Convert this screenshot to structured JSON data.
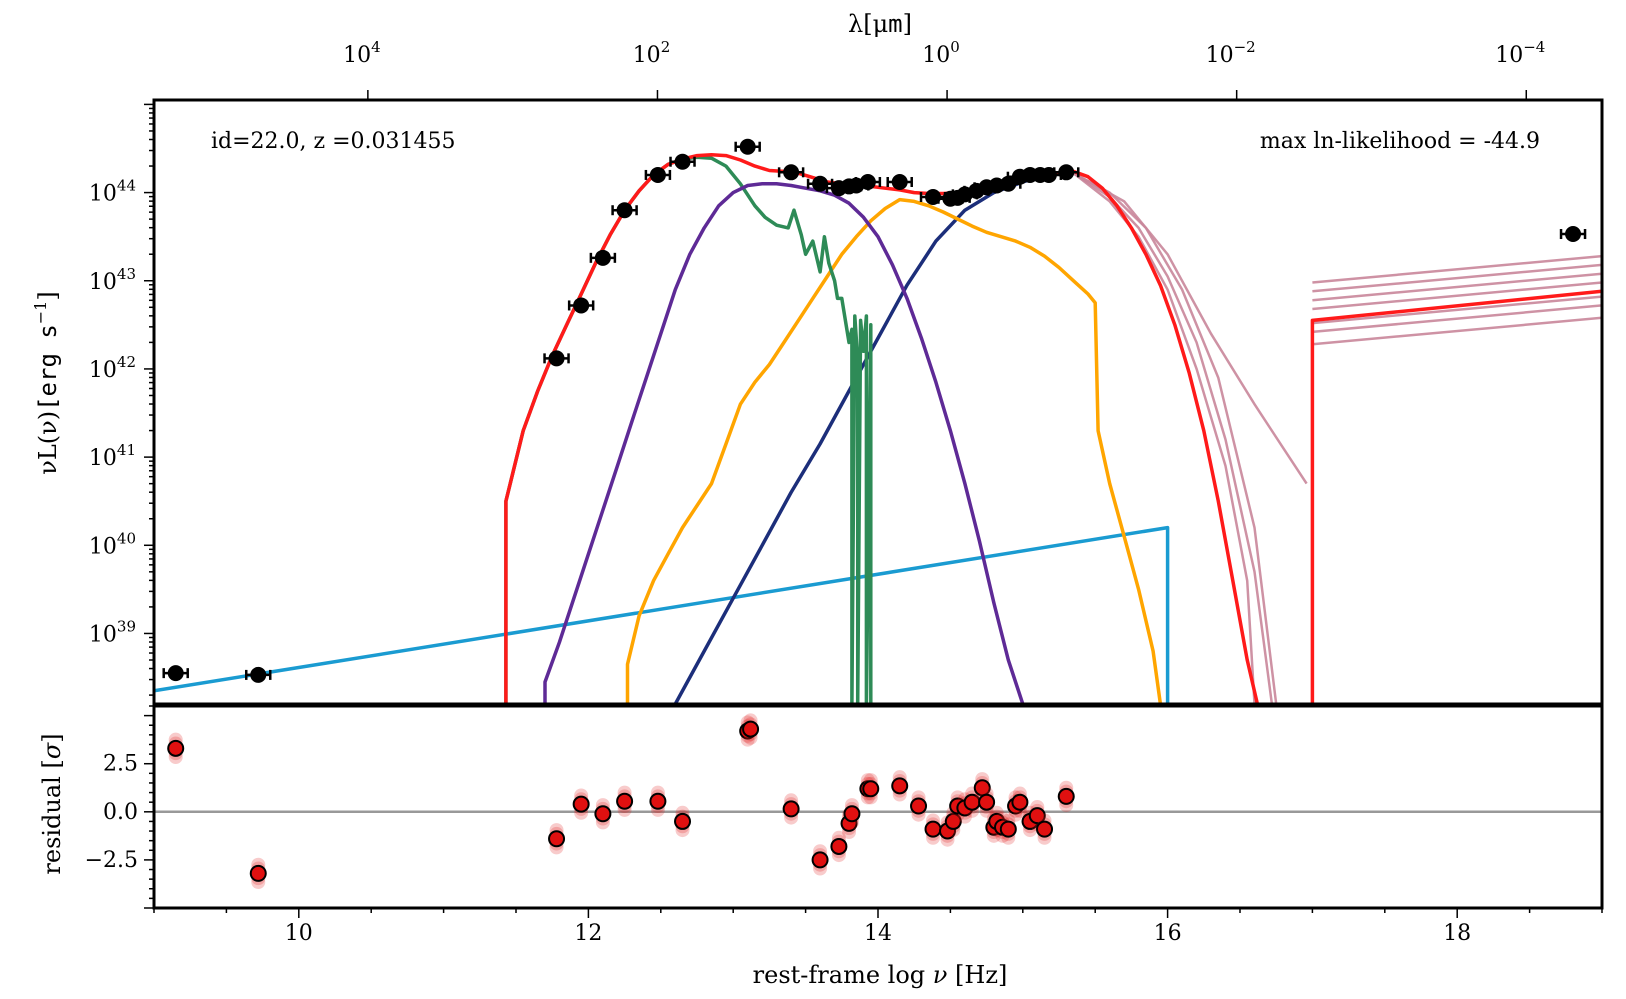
{
  "colors": {
    "total_model": "#ff1a1a",
    "total_model_samples": "#c9869a",
    "cold_dust": "#2e8b57",
    "torus": "#5e2a96",
    "stellar": "#ffa500",
    "big_blue_bump": "#1c2e7a",
    "agn_powerlaw": "#1a9bd1",
    "data": "#000000",
    "residual_points": "#e01010",
    "zero_line": "#999999"
  },
  "chart_data": [
    {
      "type": "line",
      "panel": "sed",
      "annotations": [
        "id=22.0, z =0.031455",
        "max ln-likelihood = -44.9"
      ],
      "xlabel": "",
      "ylabel_pre": "νL(ν)",
      "ylabel_mono": "[erg s",
      "ylabel_sup": "−1",
      "ylabel_close": "]",
      "top_xlabel_pre": "λ[μ",
      "top_xlabel_mono": "m",
      "top_xlabel_close": "]",
      "xlim": [
        9.0,
        19.0
      ],
      "ylim_log": [
        38.2,
        45.05
      ],
      "yscale": "log",
      "ytick_exponents": [
        "39",
        "40",
        "41",
        "42",
        "43",
        "44"
      ],
      "top_ticks": [
        {
          "x": 10.477,
          "base": "10",
          "exp": "4"
        },
        {
          "x": 12.477,
          "base": "10",
          "exp": "2"
        },
        {
          "x": 14.477,
          "base": "10",
          "exp": "0"
        },
        {
          "x": 16.477,
          "base": "10",
          "exp": "−2"
        },
        {
          "x": 18.477,
          "base": "10",
          "exp": "−4"
        }
      ],
      "data_points": {
        "x": [
          9.15,
          9.72,
          11.78,
          11.95,
          12.1,
          12.25,
          12.48,
          12.65,
          13.1,
          13.4,
          13.6,
          13.73,
          13.8,
          13.85,
          13.93,
          14.15,
          14.38,
          14.5,
          14.55,
          14.6,
          14.68,
          14.75,
          14.82,
          14.9,
          14.98,
          15.05,
          15.12,
          15.18,
          15.3,
          18.8
        ],
        "y_log": [
          38.55,
          38.53,
          42.12,
          42.72,
          43.26,
          43.8,
          44.2,
          44.35,
          44.52,
          44.23,
          44.1,
          44.05,
          44.07,
          44.08,
          44.12,
          44.12,
          43.95,
          43.93,
          43.94,
          43.98,
          44.02,
          44.06,
          44.08,
          44.1,
          44.18,
          44.2,
          44.2,
          44.2,
          44.23,
          43.53
        ]
      },
      "series": [
        {
          "component": "total_model",
          "x": [
            11.43,
            11.43,
            11.55,
            11.65,
            11.75,
            11.85,
            11.95,
            12.05,
            12.15,
            12.25,
            12.35,
            12.45,
            12.55,
            12.65,
            12.75,
            12.85,
            12.95,
            13.05,
            13.15,
            13.25,
            13.35,
            13.45,
            13.55,
            13.65,
            13.75,
            13.85,
            13.95,
            14.05,
            14.15,
            14.25,
            14.35,
            14.45,
            14.55,
            14.65,
            14.75,
            14.85,
            14.95,
            15.05,
            15.15,
            15.25,
            15.35,
            15.45,
            15.55,
            15.65,
            15.75,
            15.85,
            15.95,
            16.05,
            16.15,
            16.25,
            16.35,
            16.45,
            16.55,
            16.62
          ],
          "y_log": [
            38.2,
            40.5,
            41.3,
            41.75,
            42.15,
            42.5,
            42.85,
            43.2,
            43.52,
            43.8,
            44.02,
            44.2,
            44.32,
            44.38,
            44.42,
            44.43,
            44.42,
            44.37,
            44.3,
            44.25,
            44.24,
            44.22,
            44.17,
            44.12,
            44.1,
            44.08,
            44.07,
            44.05,
            44.03,
            44.0,
            43.99,
            43.99,
            44.0,
            44.02,
            44.05,
            44.08,
            44.12,
            44.16,
            44.19,
            44.22,
            44.24,
            44.18,
            44.05,
            43.85,
            43.6,
            43.3,
            42.95,
            42.5,
            41.95,
            41.3,
            40.5,
            39.6,
            38.7,
            38.2
          ]
        },
        {
          "component": "total_model",
          "x": [
            17.0,
            17.0,
            17.0,
            19.0
          ],
          "y_log": [
            38.2,
            40.5,
            42.55,
            42.88
          ]
        },
        {
          "component": "cold_dust",
          "x": [
            11.43,
            11.43,
            11.55,
            11.65,
            11.75,
            11.85,
            11.95,
            12.05,
            12.15,
            12.25,
            12.35,
            12.45,
            12.55,
            12.65,
            12.75,
            12.85,
            12.95,
            13.05,
            13.15,
            13.22,
            13.3,
            13.38,
            13.42,
            13.47,
            13.5,
            13.55,
            13.6,
            13.63,
            13.66,
            13.7,
            13.72,
            13.75,
            13.78,
            13.8,
            13.82,
            13.82,
            13.84,
            13.86,
            13.86,
            13.88,
            13.9,
            13.92,
            13.92,
            13.95,
            13.95
          ],
          "y_log": [
            38.2,
            40.5,
            41.3,
            41.75,
            42.15,
            42.5,
            42.85,
            43.2,
            43.52,
            43.8,
            44.02,
            44.2,
            44.32,
            44.38,
            44.4,
            44.39,
            44.3,
            44.1,
            43.85,
            43.72,
            43.63,
            43.6,
            43.8,
            43.52,
            43.3,
            43.45,
            43.1,
            43.5,
            43.2,
            43.0,
            42.8,
            42.8,
            42.5,
            42.3,
            42.45,
            38.2,
            42.6,
            42.1,
            38.2,
            42.55,
            42.2,
            42.6,
            38.2,
            42.5,
            38.2
          ]
        },
        {
          "component": "torus",
          "x": [
            11.7,
            11.7,
            11.8,
            11.9,
            12.0,
            12.1,
            12.2,
            12.3,
            12.4,
            12.5,
            12.6,
            12.7,
            12.8,
            12.9,
            13.0,
            13.1,
            13.2,
            13.3,
            13.4,
            13.5,
            13.6,
            13.7,
            13.8,
            13.9,
            14.0,
            14.1,
            14.2,
            14.3,
            14.4,
            14.5,
            14.6,
            14.7,
            14.8,
            14.9,
            14.98,
            15.0
          ],
          "y_log": [
            38.2,
            38.45,
            38.9,
            39.4,
            39.9,
            40.4,
            40.9,
            41.4,
            41.9,
            42.4,
            42.9,
            43.3,
            43.6,
            43.85,
            44.0,
            44.08,
            44.1,
            44.1,
            44.08,
            44.05,
            44.02,
            43.97,
            43.88,
            43.72,
            43.5,
            43.18,
            42.8,
            42.35,
            41.85,
            41.3,
            40.7,
            40.05,
            39.35,
            38.7,
            38.3,
            38.2
          ]
        },
        {
          "component": "stellar",
          "x": [
            12.27,
            12.27,
            12.35,
            12.45,
            12.55,
            12.65,
            12.75,
            12.85,
            12.95,
            13.05,
            13.15,
            13.25,
            13.35,
            13.45,
            13.55,
            13.65,
            13.75,
            13.85,
            13.95,
            14.05,
            14.15,
            14.25,
            14.35,
            14.45,
            14.55,
            14.65,
            14.75,
            14.85,
            14.95,
            15.05,
            15.15,
            15.25,
            15.35,
            15.45,
            15.5,
            15.52,
            15.6,
            15.7,
            15.8,
            15.9,
            15.95
          ],
          "y_log": [
            38.2,
            38.65,
            39.2,
            39.6,
            39.9,
            40.2,
            40.45,
            40.7,
            41.15,
            41.6,
            41.85,
            42.05,
            42.3,
            42.55,
            42.8,
            43.05,
            43.3,
            43.5,
            43.68,
            43.82,
            43.92,
            43.9,
            43.85,
            43.78,
            43.7,
            43.62,
            43.55,
            43.5,
            43.45,
            43.38,
            43.28,
            43.15,
            43.0,
            42.85,
            42.75,
            41.3,
            40.7,
            40.1,
            39.5,
            38.8,
            38.2
          ]
        },
        {
          "component": "big_blue_bump",
          "x": [
            12.6,
            12.8,
            13.0,
            13.2,
            13.4,
            13.6,
            13.8,
            14.0,
            14.2,
            14.4,
            14.6,
            14.8,
            15.0,
            15.1,
            15.2,
            15.3,
            15.35
          ],
          "y_log": [
            38.2,
            38.8,
            39.4,
            40.0,
            40.6,
            41.15,
            41.75,
            42.35,
            42.95,
            43.45,
            43.8,
            44.0,
            44.12,
            44.17,
            44.2,
            44.22,
            44.23
          ]
        },
        {
          "component": "agn_powerlaw",
          "x": [
            9.0,
            16.0,
            16.0
          ],
          "y_log": [
            38.35,
            40.2,
            38.2
          ]
        }
      ],
      "model_sample_tails": [
        {
          "x": [
            15.35,
            15.6,
            15.8,
            16.0,
            16.2,
            16.4,
            16.55,
            16.6
          ],
          "y_log": [
            44.22,
            43.9,
            43.5,
            42.9,
            42.0,
            40.9,
            39.6,
            38.2
          ]
        },
        {
          "x": [
            15.35,
            15.6,
            15.8,
            16.0,
            16.2,
            16.4,
            16.6,
            16.72
          ],
          "y_log": [
            44.22,
            43.95,
            43.6,
            43.05,
            42.3,
            41.2,
            39.7,
            38.2
          ]
        },
        {
          "x": [
            15.35,
            15.6,
            15.85,
            16.1,
            16.35,
            16.6,
            16.75
          ],
          "y_log": [
            44.22,
            44.0,
            43.6,
            42.9,
            41.9,
            40.2,
            38.2
          ]
        },
        {
          "x": [
            15.35,
            15.7,
            16.0,
            16.3,
            16.6,
            16.8,
            16.96
          ],
          "y_log": [
            44.22,
            43.9,
            43.3,
            42.4,
            41.6,
            41.1,
            40.7
          ]
        }
      ],
      "model_sample_xray": [
        {
          "x": [
            17.0,
            19.0
          ],
          "y_log": [
            42.98,
            43.28
          ]
        },
        {
          "x": [
            17.0,
            19.0
          ],
          "y_log": [
            42.88,
            43.18
          ]
        },
        {
          "x": [
            17.0,
            19.0
          ],
          "y_log": [
            42.78,
            43.08
          ]
        },
        {
          "x": [
            17.0,
            19.0
          ],
          "y_log": [
            42.68,
            42.98
          ]
        },
        {
          "x": [
            17.0,
            19.0
          ],
          "y_log": [
            42.52,
            42.82
          ]
        },
        {
          "x": [
            17.0,
            19.0
          ],
          "y_log": [
            42.42,
            42.72
          ]
        },
        {
          "x": [
            17.0,
            19.0
          ],
          "y_log": [
            42.28,
            42.58
          ]
        }
      ]
    },
    {
      "type": "scatter",
      "panel": "residual",
      "xlabel_pre": "rest-frame log ",
      "xlabel_nu": "ν",
      "xlabel_post": " [Hz]",
      "ylabel_pre": "residual [",
      "ylabel_sigma": "σ",
      "ylabel_post": "]",
      "xlim": [
        9.0,
        19.0
      ],
      "ylim": [
        -5.0,
        5.5
      ],
      "x_ticks": [
        "10",
        "12",
        "14",
        "16",
        "18"
      ],
      "y_ticks": [
        "2.5",
        "0.0",
        "−2.5"
      ],
      "zero_line": 0.0,
      "points": {
        "x": [
          9.15,
          9.72,
          11.78,
          11.95,
          12.1,
          12.25,
          12.48,
          12.65,
          13.1,
          13.12,
          13.4,
          13.6,
          13.73,
          13.8,
          13.82,
          13.93,
          13.95,
          14.15,
          14.28,
          14.38,
          14.48,
          14.52,
          14.55,
          14.6,
          14.65,
          14.72,
          14.75,
          14.8,
          14.82,
          14.86,
          14.9,
          14.95,
          14.98,
          15.05,
          15.1,
          15.15,
          15.3
        ],
        "y": [
          3.3,
          -3.2,
          -1.4,
          0.4,
          -0.1,
          0.55,
          0.55,
          -0.5,
          4.2,
          4.3,
          0.15,
          -2.5,
          -1.8,
          -0.6,
          -0.1,
          1.2,
          1.2,
          1.35,
          0.3,
          -0.9,
          -1.0,
          -0.5,
          0.3,
          0.2,
          0.5,
          1.25,
          0.5,
          -0.8,
          -0.5,
          -0.8,
          -0.9,
          0.3,
          0.5,
          -0.5,
          -0.2,
          -0.9,
          0.8
        ]
      }
    }
  ]
}
